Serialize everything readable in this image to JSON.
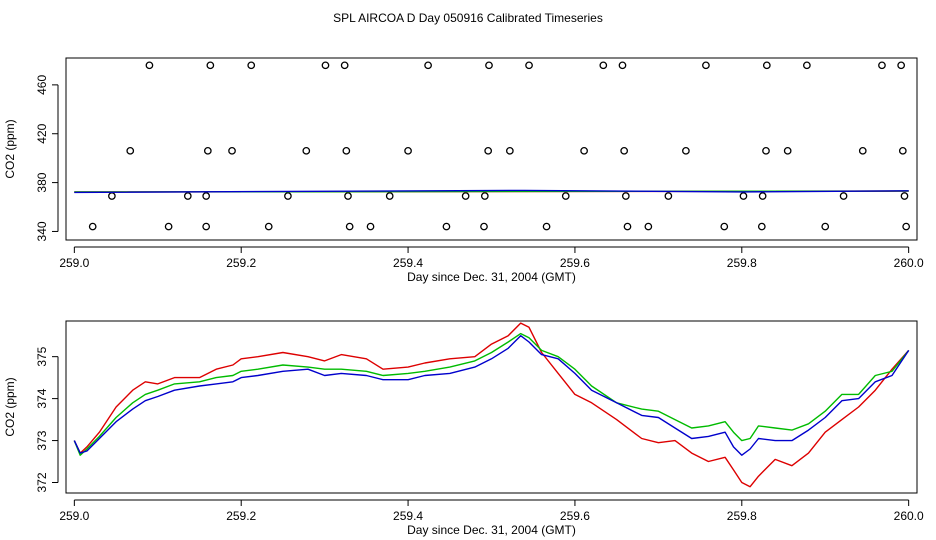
{
  "title": "SPL AIRCOA D  Day 050916  Calibrated Timeseries",
  "colors": {
    "red": "#dd0000",
    "green": "#00bb00",
    "blue": "#0000cc",
    "axis": "#000000"
  },
  "chart_data": [
    {
      "type": "scatter",
      "xlabel": "Day since Dec. 31, 2004 (GMT)",
      "ylabel": "CO2 (ppm)",
      "xlim": [
        258.99,
        260.01
      ],
      "ylim": [
        333,
        482
      ],
      "x_ticks": [
        259.0,
        259.2,
        259.4,
        259.6,
        259.8,
        260.0
      ],
      "x_tick_labels": [
        "259.0",
        "259.2",
        "259.4",
        "259.6",
        "259.8",
        "260.0"
      ],
      "y_ticks": [
        340,
        380,
        420,
        460
      ],
      "y_tick_labels": [
        "340",
        "380",
        "420",
        "460"
      ],
      "scatter_points": [
        {
          "x": 259.09,
          "y": 476
        },
        {
          "x": 259.163,
          "y": 476
        },
        {
          "x": 259.212,
          "y": 476
        },
        {
          "x": 259.301,
          "y": 476
        },
        {
          "x": 259.324,
          "y": 476
        },
        {
          "x": 259.424,
          "y": 476
        },
        {
          "x": 259.497,
          "y": 476
        },
        {
          "x": 259.545,
          "y": 476
        },
        {
          "x": 259.634,
          "y": 476
        },
        {
          "x": 259.657,
          "y": 476
        },
        {
          "x": 259.757,
          "y": 476
        },
        {
          "x": 259.83,
          "y": 476
        },
        {
          "x": 259.878,
          "y": 476
        },
        {
          "x": 259.968,
          "y": 476
        },
        {
          "x": 259.991,
          "y": 476
        },
        {
          "x": 259.067,
          "y": 406
        },
        {
          "x": 259.16,
          "y": 406
        },
        {
          "x": 259.189,
          "y": 406
        },
        {
          "x": 259.278,
          "y": 406
        },
        {
          "x": 259.326,
          "y": 406
        },
        {
          "x": 259.4,
          "y": 406
        },
        {
          "x": 259.496,
          "y": 406
        },
        {
          "x": 259.522,
          "y": 406
        },
        {
          "x": 259.611,
          "y": 406
        },
        {
          "x": 259.659,
          "y": 406
        },
        {
          "x": 259.733,
          "y": 406
        },
        {
          "x": 259.829,
          "y": 406
        },
        {
          "x": 259.855,
          "y": 406
        },
        {
          "x": 259.945,
          "y": 406
        },
        {
          "x": 259.993,
          "y": 406
        },
        {
          "x": 259.045,
          "y": 369
        },
        {
          "x": 259.136,
          "y": 369
        },
        {
          "x": 259.158,
          "y": 369
        },
        {
          "x": 259.256,
          "y": 369
        },
        {
          "x": 259.328,
          "y": 369
        },
        {
          "x": 259.378,
          "y": 369
        },
        {
          "x": 259.469,
          "y": 369
        },
        {
          "x": 259.492,
          "y": 369
        },
        {
          "x": 259.589,
          "y": 369
        },
        {
          "x": 259.661,
          "y": 369
        },
        {
          "x": 259.712,
          "y": 369
        },
        {
          "x": 259.802,
          "y": 369
        },
        {
          "x": 259.825,
          "y": 369
        },
        {
          "x": 259.922,
          "y": 369
        },
        {
          "x": 259.995,
          "y": 369
        },
        {
          "x": 259.022,
          "y": 344
        },
        {
          "x": 259.113,
          "y": 344
        },
        {
          "x": 259.158,
          "y": 344
        },
        {
          "x": 259.233,
          "y": 344
        },
        {
          "x": 259.33,
          "y": 344
        },
        {
          "x": 259.355,
          "y": 344
        },
        {
          "x": 259.446,
          "y": 344
        },
        {
          "x": 259.491,
          "y": 344
        },
        {
          "x": 259.566,
          "y": 344
        },
        {
          "x": 259.663,
          "y": 344
        },
        {
          "x": 259.688,
          "y": 344
        },
        {
          "x": 259.779,
          "y": 344
        },
        {
          "x": 259.824,
          "y": 344
        },
        {
          "x": 259.9,
          "y": 344
        },
        {
          "x": 259.997,
          "y": 344
        }
      ],
      "series": [
        {
          "name": "red",
          "color": "#dd0000",
          "x": [
            259.0,
            260.0
          ],
          "y": [
            372.3,
            373.0
          ]
        },
        {
          "name": "green",
          "color": "#00bb00",
          "x": [
            259.0,
            260.0
          ],
          "y": [
            372.3,
            373.1
          ]
        },
        {
          "name": "blue",
          "color": "#0000cc",
          "x": [
            259.0,
            259.54,
            259.8,
            260.0
          ],
          "y": [
            372.0,
            373.6,
            372.4,
            373.3
          ]
        }
      ]
    },
    {
      "type": "line",
      "xlabel": "Day since Dec. 31, 2004 (GMT)",
      "ylabel": "CO2 (ppm)",
      "xlim": [
        258.99,
        260.01
      ],
      "ylim": [
        371.75,
        375.85
      ],
      "x_ticks": [
        259.0,
        259.2,
        259.4,
        259.6,
        259.8,
        260.0
      ],
      "x_tick_labels": [
        "259.0",
        "259.2",
        "259.4",
        "259.6",
        "259.8",
        "260.0"
      ],
      "y_ticks": [
        372,
        373,
        374,
        375
      ],
      "y_tick_labels": [
        "372",
        "373",
        "374",
        "375"
      ],
      "series": [
        {
          "name": "red",
          "color": "#dd0000",
          "x": [
            259.0,
            259.007,
            259.015,
            259.03,
            259.05,
            259.07,
            259.085,
            259.1,
            259.12,
            259.15,
            259.17,
            259.19,
            259.2,
            259.22,
            259.25,
            259.28,
            259.3,
            259.32,
            259.35,
            259.37,
            259.4,
            259.42,
            259.45,
            259.48,
            259.5,
            259.52,
            259.535,
            259.545,
            259.56,
            259.58,
            259.6,
            259.62,
            259.65,
            259.68,
            259.7,
            259.72,
            259.74,
            259.76,
            259.78,
            259.79,
            259.8,
            259.81,
            259.82,
            259.84,
            259.86,
            259.88,
            259.9,
            259.92,
            259.94,
            259.96,
            259.98,
            260.0
          ],
          "y": [
            373.0,
            372.7,
            372.85,
            373.2,
            373.8,
            374.2,
            374.4,
            374.35,
            374.5,
            374.5,
            374.7,
            374.8,
            374.95,
            375.0,
            375.1,
            375.0,
            374.9,
            375.05,
            374.95,
            374.7,
            374.75,
            374.85,
            374.95,
            375.0,
            375.3,
            375.5,
            375.8,
            375.7,
            375.1,
            374.6,
            374.1,
            373.9,
            373.5,
            373.05,
            372.95,
            373.0,
            372.7,
            372.5,
            372.6,
            372.3,
            372.0,
            371.9,
            372.15,
            372.55,
            372.4,
            372.7,
            373.2,
            373.5,
            373.8,
            374.2,
            374.7,
            375.15
          ]
        },
        {
          "name": "green",
          "color": "#00bb00",
          "x": [
            259.0,
            259.007,
            259.015,
            259.03,
            259.05,
            259.07,
            259.085,
            259.1,
            259.12,
            259.15,
            259.17,
            259.19,
            259.2,
            259.22,
            259.25,
            259.28,
            259.3,
            259.32,
            259.35,
            259.37,
            259.4,
            259.42,
            259.45,
            259.48,
            259.5,
            259.52,
            259.535,
            259.545,
            259.56,
            259.58,
            259.6,
            259.62,
            259.65,
            259.68,
            259.7,
            259.72,
            259.74,
            259.76,
            259.78,
            259.79,
            259.8,
            259.81,
            259.82,
            259.84,
            259.86,
            259.88,
            259.9,
            259.92,
            259.94,
            259.96,
            259.98,
            260.0
          ],
          "y": [
            373.0,
            372.65,
            372.8,
            373.1,
            373.55,
            373.9,
            374.1,
            374.2,
            374.35,
            374.4,
            374.5,
            374.55,
            374.65,
            374.7,
            374.8,
            374.75,
            374.7,
            374.7,
            374.65,
            374.55,
            374.6,
            374.65,
            374.75,
            374.9,
            375.1,
            375.35,
            375.55,
            375.45,
            375.15,
            375.0,
            374.7,
            374.3,
            373.9,
            373.75,
            373.7,
            373.5,
            373.3,
            373.35,
            373.45,
            373.2,
            373.0,
            373.05,
            373.35,
            373.3,
            373.25,
            373.4,
            373.7,
            374.1,
            374.1,
            374.55,
            374.65,
            375.15
          ]
        },
        {
          "name": "blue",
          "color": "#0000cc",
          "x": [
            259.0,
            259.007,
            259.015,
            259.03,
            259.05,
            259.07,
            259.085,
            259.1,
            259.12,
            259.15,
            259.17,
            259.19,
            259.2,
            259.22,
            259.25,
            259.28,
            259.3,
            259.32,
            259.35,
            259.37,
            259.4,
            259.42,
            259.45,
            259.48,
            259.5,
            259.52,
            259.535,
            259.545,
            259.56,
            259.58,
            259.6,
            259.62,
            259.65,
            259.68,
            259.7,
            259.72,
            259.74,
            259.76,
            259.78,
            259.79,
            259.8,
            259.81,
            259.82,
            259.84,
            259.86,
            259.88,
            259.9,
            259.92,
            259.94,
            259.96,
            259.98,
            260.0
          ],
          "y": [
            373.0,
            372.7,
            372.75,
            373.05,
            373.45,
            373.75,
            373.95,
            374.05,
            374.2,
            374.3,
            374.35,
            374.4,
            374.5,
            374.55,
            374.65,
            374.7,
            374.55,
            374.6,
            374.55,
            374.45,
            374.45,
            374.55,
            374.6,
            374.75,
            374.95,
            375.2,
            375.5,
            375.35,
            375.05,
            374.95,
            374.6,
            374.2,
            373.9,
            373.6,
            373.55,
            373.3,
            373.05,
            373.1,
            373.2,
            372.85,
            372.65,
            372.8,
            373.05,
            373.0,
            373.0,
            373.25,
            373.55,
            373.95,
            374.0,
            374.4,
            374.55,
            375.15
          ]
        }
      ]
    }
  ]
}
